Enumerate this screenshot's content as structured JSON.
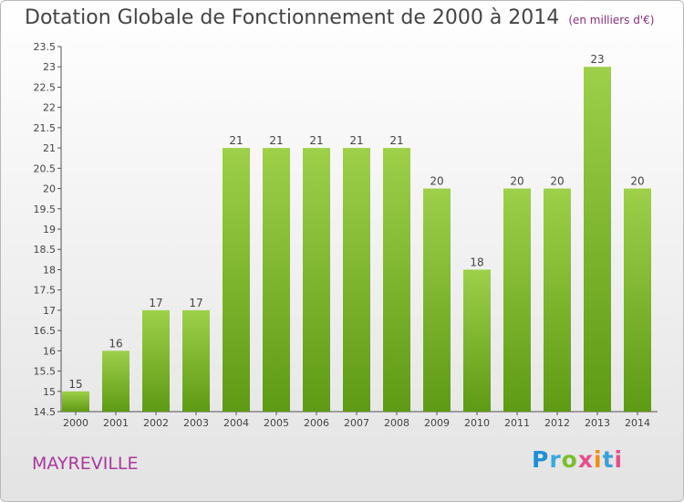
{
  "chart_data": {
    "type": "bar",
    "title": "Dotation Globale de Fonctionnement de 2000 à 2014",
    "unit": "(en milliers d'€)",
    "categories": [
      "2000",
      "2001",
      "2002",
      "2003",
      "2004",
      "2005",
      "2006",
      "2007",
      "2008",
      "2009",
      "2010",
      "2011",
      "2012",
      "2013",
      "2014"
    ],
    "values": [
      15,
      16,
      17,
      17,
      21,
      21,
      21,
      21,
      21,
      20,
      18,
      20,
      20,
      23,
      20
    ],
    "ylim": [
      14.5,
      23.5
    ],
    "yticks": [
      "14.5",
      "15",
      "15.5",
      "16",
      "16.5",
      "17",
      "17.5",
      "18",
      "18.5",
      "19",
      "19.5",
      "20",
      "20.5",
      "21",
      "21.5",
      "22",
      "22.5",
      "23",
      "23.5"
    ],
    "bar_color": "#7cb928",
    "grid": false
  },
  "commune": "MAYREVILLE",
  "logo": {
    "text": "Proxiti"
  }
}
